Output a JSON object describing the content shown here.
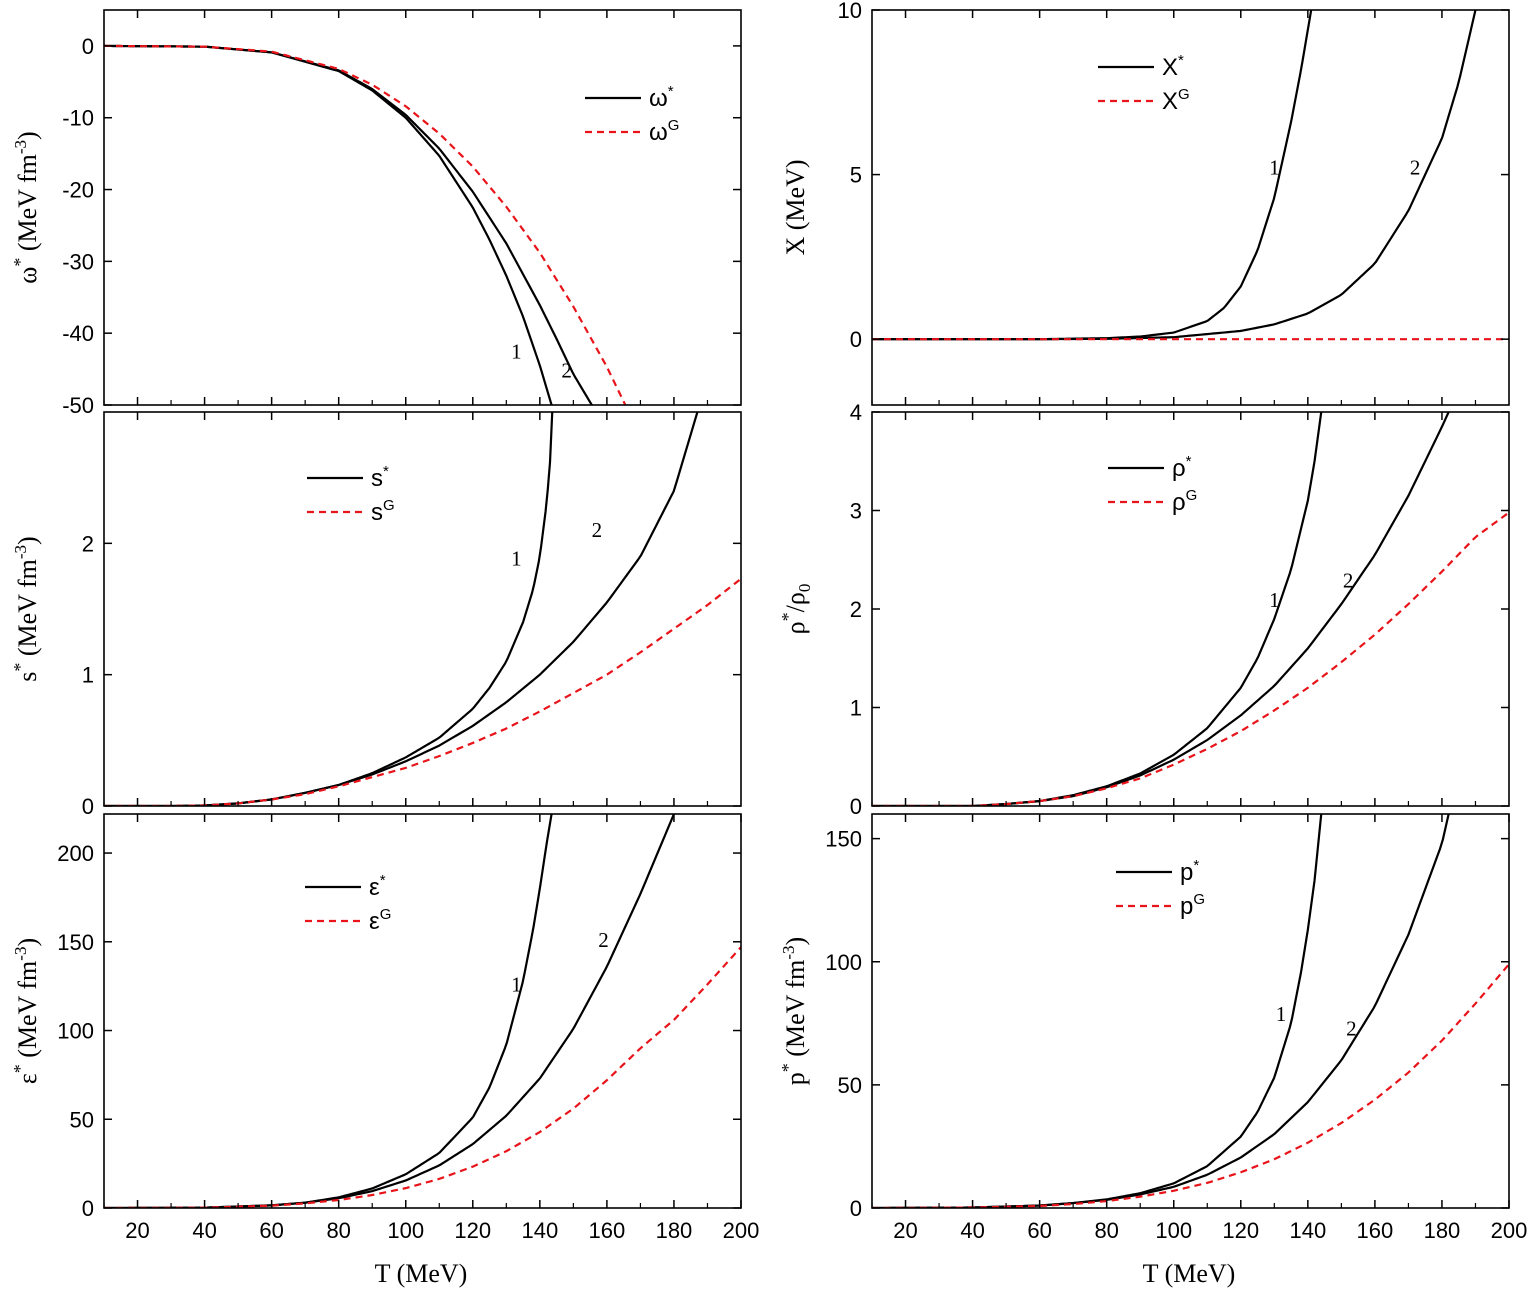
{
  "colors": {
    "star": "#000000",
    "gauss": "#e8141a",
    "axis": "#000000"
  },
  "shared_xlabel": "T (MeV)",
  "chart_data": [
    {
      "id": "omega",
      "type": "line",
      "ylabel_main": "ω",
      "ylabel_sup": "*",
      "ylabel_rest": "(MeV fm",
      "ylabel_rest_sup": "-3",
      "ylabel_close": ")",
      "xlim": [
        10,
        200
      ],
      "ylim": [
        -50,
        5
      ],
      "xticks": [
        20,
        40,
        60,
        80,
        100,
        120,
        140,
        160,
        180
      ],
      "xtick_labels_visible": false,
      "yticks": [
        0,
        -10,
        -20,
        -30,
        -40,
        -50
      ],
      "ytick_labels": [
        "0",
        "-10",
        "-20",
        "-30",
        "-40",
        "-50"
      ],
      "legend": [
        {
          "base": "ω",
          "sup": "*",
          "style": "solid"
        },
        {
          "base": "ω",
          "sup": "G",
          "style": "dashed"
        }
      ],
      "curve_labels": [
        {
          "text": "1",
          "x": 133,
          "y": -43.5
        },
        {
          "text": "2",
          "x": 148,
          "y": -46.2
        }
      ],
      "series": [
        {
          "name": "ω*",
          "curve": "1",
          "style": "solid",
          "x": [
            10,
            40,
            60,
            80,
            90,
            100,
            110,
            120,
            125,
            130,
            135,
            140,
            143.5
          ],
          "y": [
            0,
            -0.1,
            -0.9,
            -3.5,
            -6.2,
            -10,
            -15.3,
            -22.5,
            -27,
            -32,
            -37.7,
            -44.5,
            -50
          ]
        },
        {
          "name": "ω*",
          "curve": "2",
          "style": "solid",
          "x": [
            10,
            40,
            60,
            80,
            90,
            100,
            110,
            120,
            130,
            140,
            145,
            150,
            155.5
          ],
          "y": [
            0,
            -0.1,
            -0.9,
            -3.4,
            -6,
            -9.6,
            -14.3,
            -20.3,
            -27.5,
            -36.1,
            -40.8,
            -45.7,
            -50
          ]
        },
        {
          "name": "ωG",
          "curve": "G",
          "style": "dashed",
          "x": [
            10,
            40,
            60,
            80,
            90,
            100,
            110,
            120,
            130,
            140,
            150,
            160,
            165.5
          ],
          "y": [
            0,
            -0.1,
            -0.8,
            -3.2,
            -5.4,
            -8.4,
            -12.2,
            -16.8,
            -22.4,
            -28.8,
            -36.3,
            -44.7,
            -50
          ]
        }
      ]
    },
    {
      "id": "X",
      "type": "line",
      "ylabel_main": "X (MeV)",
      "xlim": [
        10,
        200
      ],
      "ylim": [
        -2,
        10
      ],
      "xticks": [
        20,
        40,
        60,
        80,
        100,
        120,
        140,
        160,
        180
      ],
      "xtick_labels_visible": false,
      "yticks": [
        0,
        5,
        10
      ],
      "ytick_labels": [
        "0",
        "5",
        "10"
      ],
      "legend": [
        {
          "base": "X",
          "sup": "*",
          "style": "solid"
        },
        {
          "base": "X",
          "sup": "G",
          "style": "dashed"
        }
      ],
      "curve_labels": [
        {
          "text": "1",
          "x": 130,
          "y": 5
        },
        {
          "text": "2",
          "x": 172,
          "y": 5
        }
      ],
      "series": [
        {
          "name": "X*",
          "curve": "1",
          "style": "solid",
          "x": [
            10,
            60,
            80,
            90,
            100,
            110,
            115,
            120,
            125,
            130,
            135,
            138,
            141
          ],
          "y": [
            0,
            0,
            0.03,
            0.08,
            0.2,
            0.55,
            0.95,
            1.6,
            2.7,
            4.3,
            6.6,
            8.2,
            10
          ]
        },
        {
          "name": "X*",
          "curve": "2",
          "style": "solid",
          "x": [
            10,
            60,
            80,
            100,
            120,
            130,
            140,
            150,
            160,
            170,
            180,
            185,
            190
          ],
          "y": [
            0,
            0,
            0.01,
            0.06,
            0.25,
            0.45,
            0.78,
            1.35,
            2.3,
            3.9,
            6.1,
            7.8,
            10
          ]
        },
        {
          "name": "XG",
          "curve": "G",
          "style": "dashed",
          "x": [
            10,
            200
          ],
          "y": [
            0,
            0
          ]
        }
      ]
    },
    {
      "id": "s",
      "type": "line",
      "ylabel_main": "s",
      "ylabel_sup": "*",
      "ylabel_rest": "(MeV fm",
      "ylabel_rest_sup": "-3",
      "ylabel_close": ")",
      "xlim": [
        10,
        200
      ],
      "ylim": [
        0,
        3
      ],
      "xticks": [
        20,
        40,
        60,
        80,
        100,
        120,
        140,
        160,
        180
      ],
      "xtick_labels_visible": false,
      "yticks": [
        0,
        1,
        2
      ],
      "ytick_labels": [
        "0",
        "1",
        "2"
      ],
      "legend": [
        {
          "base": "s",
          "sup": "*",
          "style": "solid"
        },
        {
          "base": "s",
          "sup": "G",
          "style": "dashed"
        }
      ],
      "curve_labels": [
        {
          "text": "1",
          "x": 133,
          "y": 1.83
        },
        {
          "text": "2",
          "x": 157,
          "y": 2.05
        }
      ],
      "series": [
        {
          "name": "s*",
          "curve": "1",
          "style": "solid",
          "x": [
            10,
            30,
            40,
            50,
            60,
            70,
            80,
            90,
            100,
            110,
            120,
            125,
            130,
            135,
            138,
            140,
            142,
            143,
            143.7
          ],
          "y": [
            0,
            0,
            0.004,
            0.02,
            0.05,
            0.1,
            0.16,
            0.25,
            0.37,
            0.52,
            0.74,
            0.9,
            1.1,
            1.4,
            1.65,
            1.9,
            2.3,
            2.6,
            3
          ]
        },
        {
          "name": "s*",
          "curve": "2",
          "style": "solid",
          "x": [
            10,
            30,
            40,
            50,
            60,
            70,
            80,
            90,
            100,
            110,
            120,
            130,
            140,
            150,
            160,
            170,
            180,
            187
          ],
          "y": [
            0,
            0,
            0.004,
            0.02,
            0.05,
            0.1,
            0.16,
            0.24,
            0.34,
            0.46,
            0.61,
            0.79,
            1.0,
            1.25,
            1.55,
            1.9,
            2.4,
            3
          ]
        },
        {
          "name": "sG",
          "curve": "G",
          "style": "dashed",
          "x": [
            10,
            30,
            40,
            50,
            60,
            70,
            80,
            90,
            100,
            110,
            120,
            130,
            140,
            150,
            160,
            170,
            180,
            190,
            200
          ],
          "y": [
            0,
            0,
            0.004,
            0.02,
            0.05,
            0.09,
            0.15,
            0.22,
            0.29,
            0.38,
            0.48,
            0.59,
            0.72,
            0.86,
            1.0,
            1.17,
            1.35,
            1.53,
            1.73
          ]
        }
      ]
    },
    {
      "id": "rho",
      "type": "line",
      "ylabel_main": "ρ",
      "ylabel_sup": "*",
      "ylabel_rest": "/ρ",
      "ylabel_rest_sub": "0",
      "xlim": [
        10,
        200
      ],
      "ylim": [
        0,
        4
      ],
      "xticks": [
        20,
        40,
        60,
        80,
        100,
        120,
        140,
        160,
        180
      ],
      "xtick_labels_visible": false,
      "yticks": [
        0,
        1,
        2,
        3,
        4
      ],
      "ytick_labels": [
        "0",
        "1",
        "2",
        "3",
        "4"
      ],
      "legend": [
        {
          "base": "ρ",
          "sup": "*",
          "style": "solid"
        },
        {
          "base": "ρ",
          "sup": "G",
          "style": "dashed"
        }
      ],
      "curve_labels": [
        {
          "text": "1",
          "x": 130,
          "y": 2.02
        },
        {
          "text": "2",
          "x": 152,
          "y": 2.22
        }
      ],
      "series": [
        {
          "name": "ρ*",
          "curve": "1",
          "style": "solid",
          "x": [
            10,
            40,
            50,
            60,
            70,
            80,
            90,
            100,
            110,
            120,
            125,
            130,
            135,
            140,
            142,
            144
          ],
          "y": [
            0,
            0,
            0.02,
            0.05,
            0.11,
            0.2,
            0.33,
            0.52,
            0.79,
            1.2,
            1.5,
            1.9,
            2.4,
            3.1,
            3.5,
            4.0
          ]
        },
        {
          "name": "ρ*",
          "curve": "2",
          "style": "solid",
          "x": [
            10,
            40,
            50,
            60,
            70,
            80,
            90,
            100,
            110,
            120,
            130,
            140,
            150,
            160,
            170,
            180,
            182
          ],
          "y": [
            0,
            0,
            0.02,
            0.05,
            0.1,
            0.19,
            0.31,
            0.47,
            0.67,
            0.92,
            1.22,
            1.6,
            2.05,
            2.55,
            3.15,
            3.85,
            4.0
          ]
        },
        {
          "name": "ρG",
          "curve": "G",
          "style": "dashed",
          "x": [
            10,
            40,
            50,
            60,
            70,
            80,
            90,
            100,
            110,
            120,
            130,
            140,
            150,
            160,
            170,
            180,
            190,
            200
          ],
          "y": [
            0,
            0,
            0.02,
            0.05,
            0.1,
            0.18,
            0.28,
            0.42,
            0.58,
            0.76,
            0.97,
            1.2,
            1.46,
            1.74,
            2.05,
            2.38,
            2.73,
            2.98
          ]
        }
      ]
    },
    {
      "id": "epsilon",
      "type": "line",
      "ylabel_main": "ε",
      "ylabel_sup": "*",
      "ylabel_rest": "(MeV fm",
      "ylabel_rest_sup": "-3",
      "ylabel_close": ")",
      "xlabel": "T (MeV)",
      "xlim": [
        10,
        200
      ],
      "ylim": [
        0,
        222
      ],
      "xticks": [
        20,
        40,
        60,
        80,
        100,
        120,
        140,
        160,
        180,
        200
      ],
      "xtick_labels": [
        "20",
        "40",
        "60",
        "80",
        "100",
        "120",
        "140",
        "160",
        "180",
        "200"
      ],
      "xtick_labels_visible": true,
      "yticks": [
        0,
        50,
        100,
        150,
        200
      ],
      "ytick_labels": [
        "0",
        "50",
        "100",
        "150",
        "200"
      ],
      "legend": [
        {
          "base": "ε",
          "sup": "*",
          "style": "solid"
        },
        {
          "base": "ε",
          "sup": "G",
          "style": "dashed"
        }
      ],
      "curve_labels": [
        {
          "text": "1",
          "x": 133,
          "y": 122
        },
        {
          "text": "2",
          "x": 159,
          "y": 147
        }
      ],
      "series": [
        {
          "name": "ε*",
          "curve": "1",
          "style": "solid",
          "x": [
            10,
            40,
            60,
            70,
            80,
            90,
            100,
            110,
            120,
            125,
            130,
            135,
            138,
            140,
            142,
            143.5
          ],
          "y": [
            0,
            0.2,
            1.5,
            3,
            6,
            11,
            19,
            31,
            51,
            68,
            92,
            128,
            157,
            180,
            205,
            222
          ]
        },
        {
          "name": "ε*",
          "curve": "2",
          "style": "solid",
          "x": [
            10,
            40,
            60,
            70,
            80,
            90,
            100,
            110,
            120,
            130,
            140,
            150,
            160,
            170,
            180
          ],
          "y": [
            0,
            0.2,
            1.5,
            3,
            5.5,
            9.5,
            15.5,
            24,
            36,
            52,
            73,
            101,
            136,
            177,
            222
          ]
        },
        {
          "name": "εG",
          "curve": "G",
          "style": "dashed",
          "x": [
            10,
            40,
            60,
            70,
            80,
            90,
            100,
            110,
            120,
            130,
            140,
            150,
            160,
            170,
            180,
            190,
            200
          ],
          "y": [
            0,
            0.2,
            1.3,
            2.6,
            4.5,
            7.3,
            11.2,
            16.4,
            23.3,
            32,
            42.8,
            56,
            72,
            90,
            106,
            126,
            147
          ]
        }
      ]
    },
    {
      "id": "p",
      "type": "line",
      "ylabel_main": "p",
      "ylabel_sup": "*",
      "ylabel_rest": "(MeV fm",
      "ylabel_rest_sup": "-3",
      "ylabel_close": ")",
      "xlabel": "T (MeV)",
      "xlim": [
        10,
        200
      ],
      "ylim": [
        0,
        160
      ],
      "xticks": [
        20,
        40,
        60,
        80,
        100,
        120,
        140,
        160,
        180,
        200
      ],
      "xtick_labels": [
        "20",
        "40",
        "60",
        "80",
        "100",
        "120",
        "140",
        "160",
        "180",
        "200"
      ],
      "xtick_labels_visible": true,
      "yticks": [
        0,
        50,
        100,
        150
      ],
      "ytick_labels": [
        "0",
        "50",
        "100",
        "150"
      ],
      "legend": [
        {
          "base": "p",
          "sup": "*",
          "style": "solid"
        },
        {
          "base": "p",
          "sup": "G",
          "style": "dashed"
        }
      ],
      "curve_labels": [
        {
          "text": "1",
          "x": 132,
          "y": 76
        },
        {
          "text": "2",
          "x": 153,
          "y": 70
        }
      ],
      "series": [
        {
          "name": "p*",
          "curve": "1",
          "style": "solid",
          "x": [
            10,
            40,
            60,
            70,
            80,
            90,
            100,
            110,
            120,
            125,
            130,
            135,
            138,
            140,
            142,
            144
          ],
          "y": [
            0,
            0.2,
            1,
            2,
            3.5,
            6,
            10,
            17,
            29,
            39,
            53,
            75,
            96,
            113,
            133,
            160
          ]
        },
        {
          "name": "p*",
          "curve": "2",
          "style": "solid",
          "x": [
            10,
            40,
            60,
            70,
            80,
            90,
            100,
            110,
            120,
            130,
            140,
            150,
            160,
            170,
            180,
            182
          ],
          "y": [
            0,
            0.2,
            1,
            2,
            3.3,
            5.5,
            8.6,
            13.5,
            20.5,
            30,
            43,
            60,
            82,
            111,
            148,
            160
          ]
        },
        {
          "name": "pG",
          "curve": "G",
          "style": "dashed",
          "x": [
            10,
            40,
            60,
            70,
            80,
            90,
            100,
            110,
            120,
            130,
            140,
            150,
            160,
            170,
            180,
            190,
            200
          ],
          "y": [
            0,
            0.2,
            0.8,
            1.6,
            2.8,
            4.6,
            7,
            10.2,
            14.5,
            19.8,
            26.5,
            34.5,
            44,
            55,
            68,
            83,
            99
          ]
        }
      ]
    }
  ]
}
